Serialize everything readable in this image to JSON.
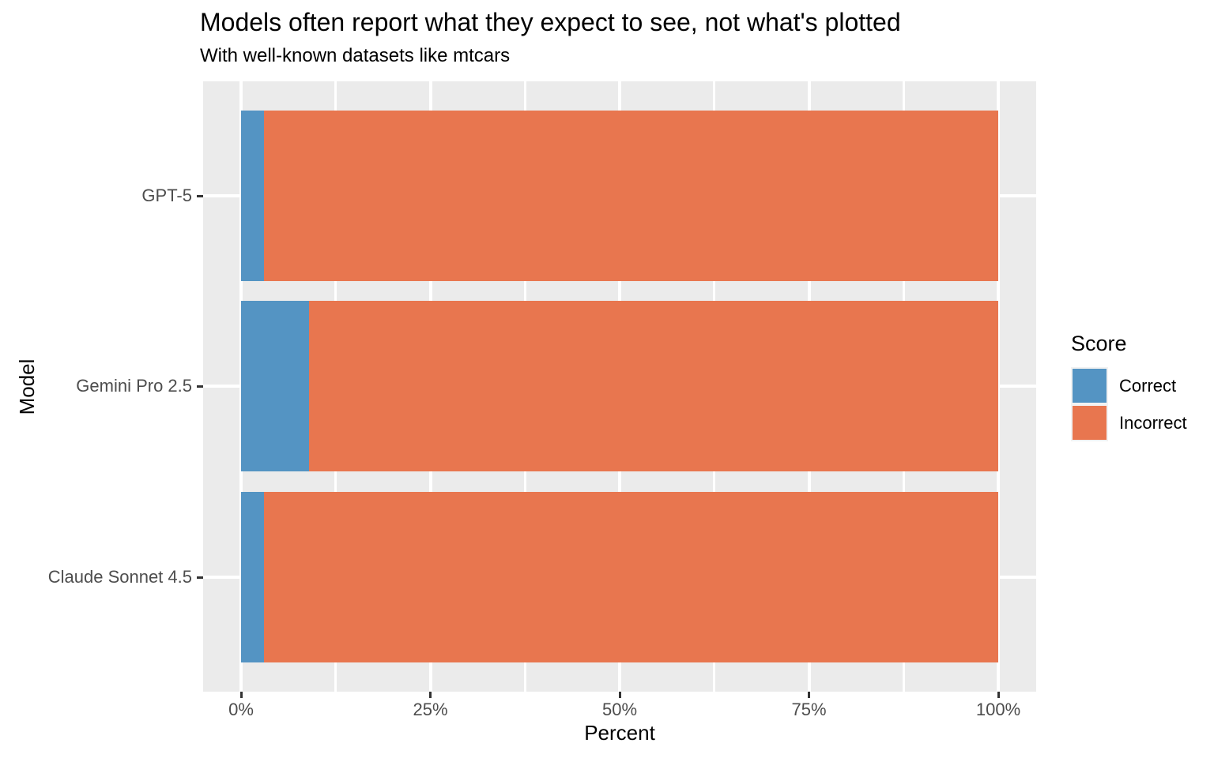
{
  "chart_data": {
    "type": "bar",
    "orientation": "horizontal",
    "stacked": true,
    "title": "Models often report what they expect to see, not what's plotted",
    "subtitle": "With well-known datasets like mtcars",
    "xlabel": "Percent",
    "ylabel": "Model",
    "categories": [
      "GPT-5",
      "Gemini Pro 2.5",
      "Claude Sonnet 4.5"
    ],
    "series": [
      {
        "name": "Correct",
        "color": "#5494C3",
        "values": [
          3,
          9,
          3
        ]
      },
      {
        "name": "Incorrect",
        "color": "#E8764F",
        "values": [
          97,
          91,
          97
        ]
      }
    ],
    "xlim": [
      0,
      100
    ],
    "x_ticks": [
      {
        "value": 0,
        "label": "0%"
      },
      {
        "value": 25,
        "label": "25%"
      },
      {
        "value": 50,
        "label": "50%"
      },
      {
        "value": 75,
        "label": "75%"
      },
      {
        "value": 100,
        "label": "100%"
      }
    ],
    "minor_grid_values": [
      12.5,
      37.5,
      62.5,
      87.5
    ],
    "grid": true,
    "legend": {
      "title": "Score",
      "position": "right",
      "entries": [
        "Correct",
        "Incorrect"
      ]
    },
    "colors": {
      "panel_bg": "#EBEBEB",
      "grid": "#FFFFFF",
      "tick_mark": "#333333",
      "axis_text": "#4D4D4D",
      "title_text": "#000000",
      "legend_key_bg": "#F2F2F2"
    }
  }
}
